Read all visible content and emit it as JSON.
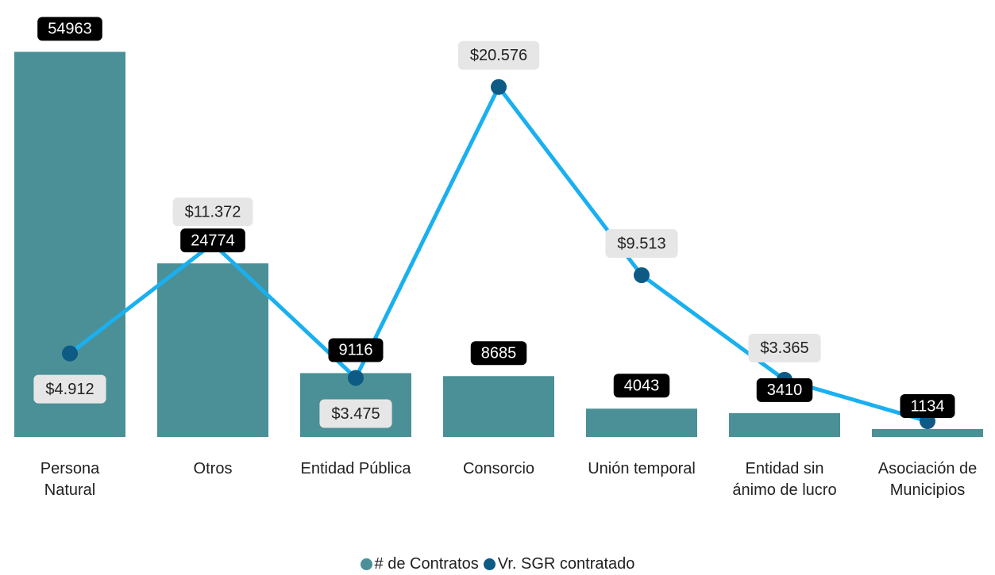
{
  "chart_data": {
    "type": "bar-line",
    "categories": [
      "Persona Natural",
      "Otros",
      "Entidad Pública",
      "Consorcio",
      "Unión temporal",
      "Entidad sin ánimo de lucro",
      "Asociación de Municipios"
    ],
    "series": [
      {
        "name": "# de Contratos",
        "type": "bar",
        "color": "#4a9096",
        "values": [
          54963,
          24774,
          9116,
          8685,
          4043,
          3410,
          1134
        ]
      },
      {
        "name": "Vr. SGR contratado",
        "type": "line",
        "axis": "y2",
        "color": "#0d5a85",
        "line_color": "#1ab0f0",
        "values": [
          4912,
          11372,
          3475,
          20576,
          9513,
          3365,
          930
        ],
        "value_labels": [
          "$4.912",
          "$11.372",
          "$3.475",
          "$20.576",
          "$9.513",
          "$3.365",
          null
        ]
      }
    ],
    "ylim": [
      0,
      55000
    ],
    "y2lim": [
      0,
      22660
    ],
    "legend": "bottom"
  }
}
